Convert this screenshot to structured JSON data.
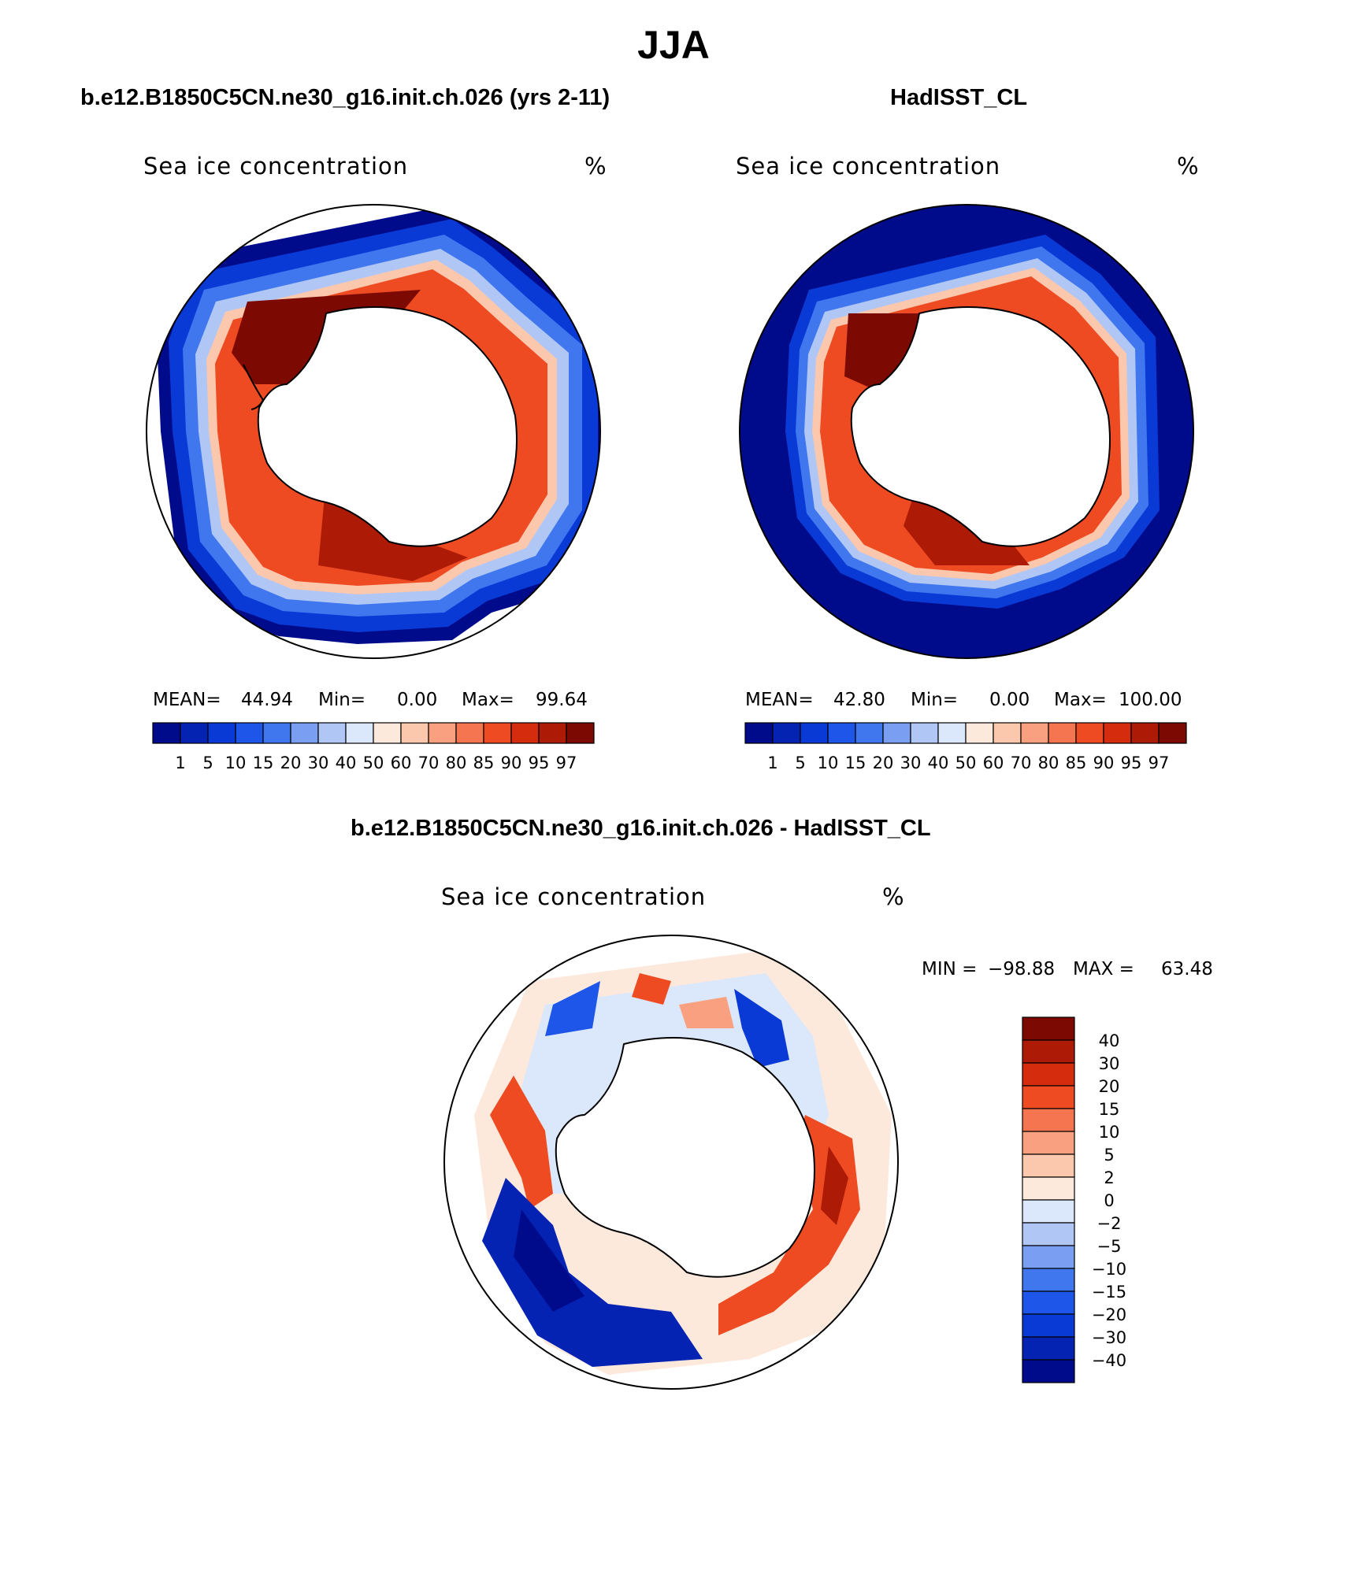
{
  "title": "JJA",
  "panels": [
    {
      "id": "model",
      "case_title": "b.e12.B1850C5CN.ne30_g16.init.ch.026 (yrs 2-11)",
      "variable": "Sea ice concentration",
      "units": "%",
      "stats": {
        "mean_label": "MEAN=",
        "mean": "44.94",
        "min_label": "Min=",
        "min": "0.00",
        "max_label": "Max=",
        "max": "99.64"
      }
    },
    {
      "id": "obs",
      "case_title": "HadISST_CL",
      "variable": "Sea ice concentration",
      "units": "%",
      "stats": {
        "mean_label": "MEAN=",
        "mean": "42.80",
        "min_label": "Min=",
        "min": "0.00",
        "max_label": "Max=",
        "max": "100.00"
      }
    },
    {
      "id": "diff",
      "case_title": "b.e12.B1850C5CN.ne30_g16.init.ch.026 - HadISST_CL",
      "variable": "Sea ice concentration",
      "units": "%",
      "stats": {
        "min_label": "MIN =",
        "min": "−98.88",
        "max_label": "MAX =",
        "max": "63.48"
      }
    }
  ],
  "colorbars": {
    "concentration": {
      "labels": [
        "1",
        "5",
        "10",
        "15",
        "20",
        "30",
        "40",
        "50",
        "60",
        "70",
        "80",
        "85",
        "90",
        "95",
        "97"
      ],
      "colors": [
        "#000b8c",
        "#0523b3",
        "#0a3ad6",
        "#1d56e8",
        "#4077ee",
        "#7a9ef2",
        "#b0c7f6",
        "#dbe7fb",
        "#fde9dc",
        "#fbc7ad",
        "#f8a07f",
        "#f47550",
        "#ee4b22",
        "#d42c0c",
        "#ad1a06",
        "#7c0a02"
      ]
    },
    "difference": {
      "labels": [
        "40",
        "30",
        "20",
        "15",
        "10",
        "5",
        "2",
        "0",
        "−2",
        "−5",
        "−10",
        "−15",
        "−20",
        "−30",
        "−40"
      ],
      "colors": [
        "#7c0a02",
        "#ad1a06",
        "#d42c0c",
        "#ee4b22",
        "#f47550",
        "#f8a07f",
        "#fbc7ad",
        "#fde9dc",
        "#dbe7fb",
        "#b0c7f6",
        "#7a9ef2",
        "#4077ee",
        "#1d56e8",
        "#0a3ad6",
        "#0523b3",
        "#000b8c"
      ]
    }
  }
}
